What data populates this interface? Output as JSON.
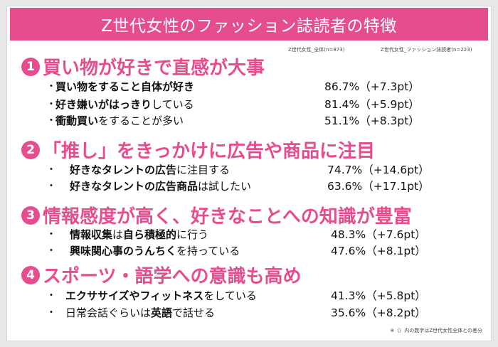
{
  "title": "Z世代女性のファッション誌読者の特徴",
  "legend": {
    "left": "Z世代女性_全体(n=873)",
    "right": "Z世代女性_ファッション誌読者(n=223)"
  },
  "sections": [
    {
      "number": "1",
      "title": "買い物が好きで直感が大事",
      "items": [
        {
          "bullet": "・",
          "parts": [
            {
              "t": "買い物をすること自体が好き",
              "b": true
            }
          ],
          "value": "86.7%（+7.3pt）"
        },
        {
          "bullet": "・",
          "parts": [
            {
              "t": "好き嫌いがはっきり",
              "b": true
            },
            {
              "t": "している",
              "b": false
            }
          ],
          "value": "81.4%（+5.9pt）"
        },
        {
          "bullet": "・",
          "parts": [
            {
              "t": "衝動買い",
              "b": true
            },
            {
              "t": "をすることが多い",
              "b": false
            }
          ],
          "value": "51.1%（+8.3pt）"
        }
      ]
    },
    {
      "number": "2",
      "title": "「推し」をきっかけに広告や商品に注目",
      "items": [
        {
          "bullet": "・",
          "parts": [
            {
              "t": "好きなタレントの広告",
              "b": true
            },
            {
              "t": "に注目する",
              "b": false
            }
          ],
          "value": "74.7%（+14.6pt）"
        },
        {
          "bullet": "・",
          "parts": [
            {
              "t": "好きなタレントの広告商品",
              "b": true
            },
            {
              "t": "は試したい",
              "b": false
            }
          ],
          "value": "63.6%（+17.1pt）"
        }
      ]
    },
    {
      "number": "3",
      "title": "情報感度が高く、好きなことへの知識が豊富",
      "items": [
        {
          "bullet": "・",
          "parts": [
            {
              "t": "情報収集",
              "b": true
            },
            {
              "t": "は",
              "b": false
            },
            {
              "t": "自ら積極的",
              "b": true
            },
            {
              "t": "に行う",
              "b": false
            }
          ],
          "value": "48.3%（+7.6pt）"
        },
        {
          "bullet": "・",
          "parts": [
            {
              "t": "興味関心事のうんちく",
              "b": true
            },
            {
              "t": "を持っている",
              "b": false
            }
          ],
          "value": "47.6%（+8.1pt）"
        }
      ]
    },
    {
      "number": "4",
      "title": "スポーツ・語学への意識も高め",
      "items": [
        {
          "bullet": "・",
          "parts": [
            {
              "t": "エクササイズやフィットネス",
              "b": true
            },
            {
              "t": "をしている",
              "b": false
            }
          ],
          "value": "41.3%（+5.8pt）"
        },
        {
          "bullet": "・",
          "parts": [
            {
              "t": "日常会話ぐらいは",
              "b": false
            },
            {
              "t": "英語",
              "b": true
            },
            {
              "t": "で話せる",
              "b": false
            }
          ],
          "value": "35.6%（+8.2pt）"
        }
      ]
    }
  ],
  "footnote": "※（）内の数字はZ世代女性全体との差分",
  "colors": {
    "accent": "#e64d8f",
    "text": "#111111"
  }
}
